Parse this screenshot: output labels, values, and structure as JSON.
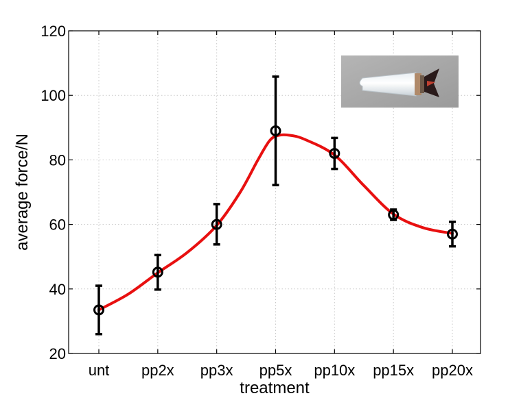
{
  "chart_data": {
    "type": "scatter",
    "title": "",
    "xlabel": "treatment",
    "ylabel": "average force/N",
    "categories": [
      "unt",
      "pp2x",
      "pp3x",
      "pp5x",
      "pp10x",
      "pp15x",
      "pp20x"
    ],
    "ylim": [
      20,
      120
    ],
    "yticks": [
      20,
      40,
      60,
      80,
      100,
      120
    ],
    "grid": true,
    "series": [
      {
        "values": [
          33.5,
          45.2,
          60.0,
          89.0,
          82.0,
          63.0,
          57.0
        ],
        "error_low": [
          26.0,
          39.8,
          53.8,
          72.2,
          77.2,
          61.4,
          53.2
        ],
        "error_high": [
          41.0,
          50.5,
          66.3,
          105.8,
          86.8,
          64.6,
          60.8
        ],
        "marker": "circle",
        "color": "#000000"
      }
    ],
    "fit_curve": {
      "color": "#e81010",
      "style": "smooth",
      "points": [
        [
          0.0,
          33.5
        ],
        [
          0.5,
          38.4
        ],
        [
          1.0,
          45.0
        ],
        [
          1.5,
          51.3
        ],
        [
          2.0,
          59.7
        ],
        [
          2.4,
          70.0
        ],
        [
          2.7,
          80.0
        ],
        [
          2.9,
          86.0
        ],
        [
          3.05,
          87.6
        ],
        [
          3.25,
          87.6
        ],
        [
          3.5,
          86.3
        ],
        [
          4.0,
          81.5
        ],
        [
          4.5,
          72.0
        ],
        [
          5.0,
          63.2
        ],
        [
          5.5,
          59.0
        ],
        [
          6.0,
          57.2
        ]
      ]
    },
    "inset": {
      "description_icon": "cartridge-photo-icon",
      "bg_color": "#a9a9a9"
    }
  }
}
